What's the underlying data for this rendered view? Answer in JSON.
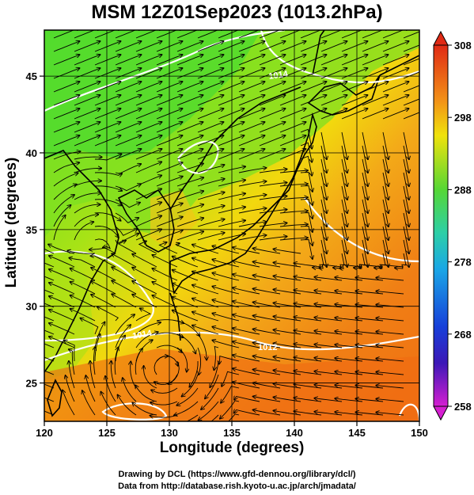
{
  "title": "MSM 12Z01Sep2023 (1013.2hPa)",
  "axes": {
    "xlabel": "Longitude (degrees)",
    "ylabel": "Latitude  (degrees)",
    "x_ticks": [
      "120",
      "125",
      "130",
      "135",
      "140",
      "145",
      "150"
    ],
    "y_ticks": [
      "25",
      "30",
      "35",
      "40",
      "45"
    ],
    "x_range": [
      120,
      150
    ],
    "y_range": [
      22.5,
      48
    ]
  },
  "colorbar": {
    "labels": [
      "308",
      "298",
      "288",
      "278",
      "268",
      "258"
    ],
    "range": [
      258,
      308
    ]
  },
  "contour_labels": [
    "1014",
    "1014",
    "1012"
  ],
  "credits": {
    "line1": "Drawing by DCL (https://www.gfd-dennou.org/library/dcl/)",
    "line2": "Data from http://database.rish.kyoto-u.ac.jp/arch/jmadata/"
  },
  "chart_data": {
    "type": "heatmap",
    "variable_range_K": [
      258,
      308
    ],
    "colors": {
      "cold_land": "#59e02a",
      "warm_sea": "#f07a12",
      "coast": "#000000",
      "isobar": "#ffffff",
      "streamline": "#000000"
    },
    "isobar_values_hPa": [
      1012,
      1014
    ],
    "grid": true
  }
}
